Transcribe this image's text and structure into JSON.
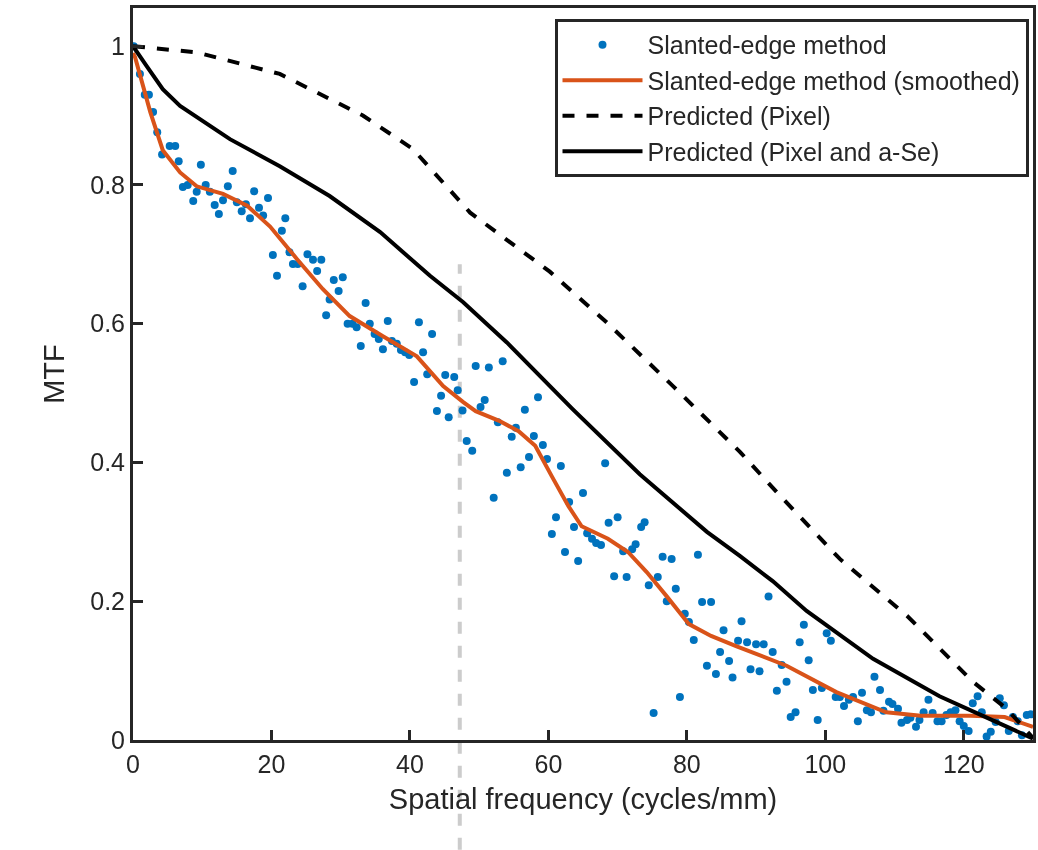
{
  "chart_data": {
    "type": "line",
    "xlabel": "Spatial frequency (cycles/mm)",
    "ylabel": "MTF",
    "xlim": [
      0,
      130
    ],
    "xticks": [
      0,
      20,
      40,
      60,
      80,
      100,
      120
    ],
    "ylim": [
      0,
      1.055
    ],
    "yticks": [
      0,
      0.2,
      0.4,
      0.6,
      0.8,
      1
    ],
    "grid": false,
    "legend": "top right",
    "ref_lines": [
      {
        "axis": "x",
        "value": 47.2,
        "color": "#cccccc",
        "line_style": "dashed"
      }
    ],
    "series": [
      {
        "name": "Slanted-edge method",
        "type": "scatter",
        "marker": "circle",
        "color": "#0072bd",
        "x": [
          0.1,
          1,
          1.7,
          2.3,
          2.9,
          3.5,
          4.2,
          5.3,
          6.1,
          6.6,
          7.2,
          7.9,
          8.7,
          9.2,
          9.8,
          10.5,
          11.1,
          11.8,
          12.4,
          13,
          13.7,
          14.4,
          15,
          15.7,
          16.3,
          16.9,
          17.5,
          18.2,
          18.8,
          19.5,
          20.2,
          20.8,
          21.5,
          22,
          22.6,
          23.1,
          23.8,
          24.5,
          25.2,
          26,
          26.6,
          27.2,
          27.9,
          28.4,
          29,
          29.7,
          30.3,
          31,
          31.7,
          32.3,
          32.9,
          33.6,
          34.2,
          34.9,
          35.5,
          36.1,
          36.8,
          37.4,
          38.1,
          38.7,
          39.3,
          39.9,
          40.6,
          41.3,
          41.9,
          42.5,
          43.2,
          43.9,
          44.5,
          45.1,
          45.6,
          46.4,
          46.9,
          47.6,
          48.2,
          49,
          49.5,
          50.2,
          50.8,
          51.4,
          52.1,
          52.7,
          53.4,
          54,
          54.7,
          55.3,
          56,
          56.6,
          57.2,
          57.9,
          58.5,
          59.2,
          59.8,
          60.5,
          61.1,
          61.8,
          62.4,
          63,
          63.7,
          64.3,
          65,
          65.6,
          66.3,
          66.9,
          67.6,
          68.2,
          68.7,
          69.5,
          70,
          70.8,
          71.3,
          72.1,
          72.6,
          73.4,
          73.9,
          74.5,
          75.2,
          75.8,
          76.5,
          77.1,
          77.8,
          78.4,
          79,
          79.7,
          80.3,
          81,
          81.6,
          82.2,
          82.9,
          83.5,
          84.2,
          84.8,
          85.3,
          86.1,
          86.6,
          87.4,
          87.9,
          88.7,
          89.2,
          90,
          90.5,
          91.1,
          91.8,
          92.4,
          93,
          93.7,
          94.4,
          95,
          95.7,
          96.3,
          96.9,
          97.6,
          98.2,
          98.9,
          99.5,
          100.2,
          100.8,
          101.5,
          102.1,
          102.7,
          103.4,
          104,
          104.7,
          105.3,
          106,
          106.6,
          107.1,
          107.9,
          108.4,
          109.2,
          109.7,
          110.5,
          111,
          111.8,
          112.3,
          113.1,
          113.6,
          114.2,
          114.9,
          115.5,
          116.2,
          116.8,
          117.5,
          118.1,
          118.8,
          119.4,
          120,
          120.7,
          121.3,
          122,
          122.6,
          123.3,
          123.9,
          124.6,
          125.2,
          125.8,
          126.5,
          127.1,
          127.8,
          128.4,
          129.1,
          129.7
        ],
        "values": [
          1,
          0.96,
          0.93,
          0.93,
          0.905,
          0.876,
          0.844,
          0.856,
          0.856,
          0.834,
          0.797,
          0.8,
          0.777,
          0.79,
          0.829,
          0.8,
          0.79,
          0.771,
          0.758,
          0.778,
          0.798,
          0.82,
          0.775,
          0.762,
          0.772,
          0.752,
          0.791,
          0.767,
          0.756,
          0.781,
          0.699,
          0.669,
          0.734,
          0.752,
          0.703,
          0.686,
          0.686,
          0.654,
          0.7,
          0.692,
          0.676,
          0.692,
          0.612,
          0.635,
          0.663,
          0.647,
          0.667,
          0.6,
          0.6,
          0.595,
          0.568,
          0.63,
          0.6,
          0.585,
          0.578,
          0.563,
          0.604,
          0.575,
          0.571,
          0.562,
          0.559,
          0.555,
          0.516,
          0.602,
          0.559,
          0.527,
          0.585,
          0.474,
          0.496,
          0.526,
          0.465,
          0.523,
          0.504,
          0.475,
          0.431,
          0.417,
          0.539,
          0.48,
          0.49,
          0.537,
          0.349,
          0.458,
          0.546,
          0.385,
          0.437,
          0.45,
          0.393,
          0.476,
          0.408,
          0.438,
          0.494,
          0.425,
          0.405,
          0.297,
          0.321,
          0.395,
          0.271,
          0.343,
          0.307,
          0.258,
          0.356,
          0.298,
          0.29,
          0.284,
          0.281,
          0.399,
          0.313,
          0.236,
          0.321,
          0.272,
          0.235,
          0.275,
          0.282,
          0.307,
          0.314,
          0.223,
          0.039,
          0.235,
          0.264,
          0.2,
          0.261,
          0.218,
          0.062,
          0.182,
          0.17,
          0.144,
          0.267,
          0.199,
          0.107,
          0.199,
          0.095,
          0.127,
          0.158,
          0.114,
          0.09,
          0.143,
          0.171,
          0.141,
          0.102,
          0.138,
          0.099,
          0.138,
          0.207,
          0.127,
          0.071,
          0.108,
          0.084,
          0.033,
          0.04,
          0.141,
          0.166,
          0.115,
          0.072,
          0.029,
          0.075,
          0.154,
          0.143,
          0.062,
          0.062,
          0.049,
          0.058,
          0.062,
          0.027,
          0.068,
          0.043,
          0.04,
          0.091,
          0.072,
          0.042,
          0.055,
          0.052,
          0.045,
          0.025,
          0.029,
          0.032,
          0.019,
          0.029,
          0.04,
          0.058,
          0.039,
          0.027,
          0.027,
          0.036,
          0.04,
          0.043,
          0.027,
          0.02,
          0.013,
          0.053,
          0.063,
          0.04,
          0.005,
          0.012,
          0.026,
          0.06,
          0.05,
          0.013,
          0.033,
          0.027,
          0.007,
          0.036,
          0.037
        ]
      },
      {
        "name": "Slanted-edge method (smoothed)",
        "line_style": "solid",
        "color": "#d95319",
        "x": [
          0,
          0.3,
          2.5,
          4.3,
          6.8,
          9.2,
          13,
          16.5,
          19.8,
          23.7,
          27.4,
          31.3,
          36.1,
          41,
          44.8,
          47.7,
          49.5,
          52.9,
          55.7,
          58.1,
          60.5,
          62.9,
          64.8,
          68.6,
          71.5,
          74.2,
          77.1,
          80.3,
          83.5,
          87.2,
          94.4,
          101.6,
          108.8,
          113.8,
          121,
          125.9,
          130
        ],
        "values": [
          0.99,
          0.984,
          0.905,
          0.85,
          0.818,
          0.798,
          0.787,
          0.77,
          0.74,
          0.693,
          0.65,
          0.611,
          0.582,
          0.553,
          0.51,
          0.487,
          0.474,
          0.46,
          0.445,
          0.424,
          0.38,
          0.337,
          0.308,
          0.29,
          0.271,
          0.242,
          0.207,
          0.167,
          0.15,
          0.135,
          0.107,
          0.069,
          0.04,
          0.035,
          0.035,
          0.033,
          0.019
        ]
      },
      {
        "name": "Predicted (Pixel)",
        "line_style": "dashed",
        "color": "#000000",
        "x": [
          0,
          9.2,
          21.2,
          33.2,
          40.4,
          48.7,
          60.2,
          68.4,
          78,
          87.7,
          93,
          102.1,
          111.8,
          121.3,
          126.2,
          130
        ],
        "values": [
          1,
          0.991,
          0.96,
          0.9,
          0.852,
          0.76,
          0.675,
          0.602,
          0.51,
          0.415,
          0.357,
          0.261,
          0.179,
          0.084,
          0.045,
          0.003
        ]
      },
      {
        "name": "Predicted (Pixel and a-Se)",
        "line_style": "solid",
        "color": "#000000",
        "x": [
          0,
          2,
          4.3,
          6.8,
          14,
          21.2,
          28.4,
          35.7,
          42.9,
          47.7,
          54,
          63.5,
          73.2,
          82.9,
          87.7,
          92.4,
          97.3,
          106.9,
          116.5,
          123.8,
          130
        ],
        "values": [
          1,
          0.971,
          0.938,
          0.914,
          0.866,
          0.827,
          0.784,
          0.732,
          0.669,
          0.631,
          0.573,
          0.477,
          0.383,
          0.3,
          0.265,
          0.229,
          0.186,
          0.117,
          0.063,
          0.03,
          0.002
        ]
      }
    ]
  }
}
